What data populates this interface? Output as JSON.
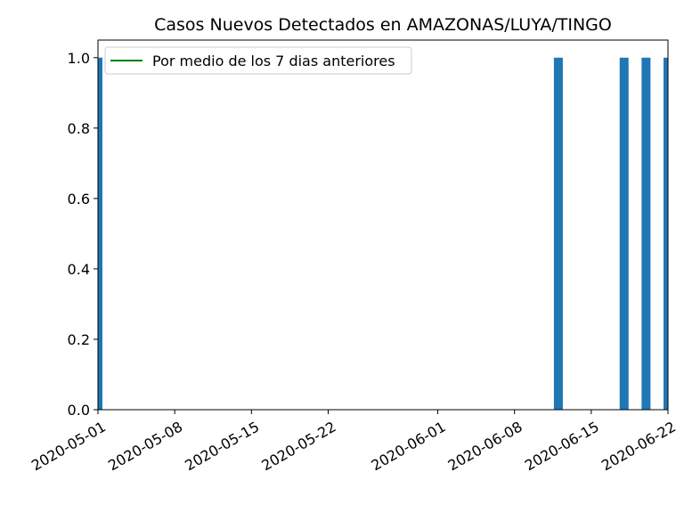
{
  "chart_data": {
    "type": "bar",
    "title": "Casos Nuevos Detectados en AMAZONAS/LUYA/TINGO",
    "xlabel": "",
    "ylabel": "",
    "x_range": [
      "2020-05-01",
      "2020-06-22"
    ],
    "ylim": [
      0,
      1.05
    ],
    "x_ticks": [
      "2020-05-01",
      "2020-05-08",
      "2020-05-15",
      "2020-05-22",
      "2020-06-01",
      "2020-06-08",
      "2020-06-15",
      "2020-06-22"
    ],
    "y_ticks": [
      "0.0",
      "0.2",
      "0.4",
      "0.6",
      "0.8",
      "1.0"
    ],
    "series": [
      {
        "type": "bar",
        "color": "#1f77b4",
        "points": [
          {
            "x": "2020-05-01",
            "y": 1
          },
          {
            "x": "2020-06-12",
            "y": 1
          },
          {
            "x": "2020-06-18",
            "y": 1
          },
          {
            "x": "2020-06-20",
            "y": 1
          },
          {
            "x": "2020-06-22",
            "y": 1
          }
        ]
      },
      {
        "type": "line",
        "name": "Por medio de los 7 dias anteriores",
        "color": "#008000",
        "points": []
      }
    ],
    "legend": {
      "position": "upper-left",
      "entries": [
        {
          "label": "Por medio de los 7 dias anteriores",
          "color": "#008000"
        }
      ]
    },
    "grid": false
  }
}
